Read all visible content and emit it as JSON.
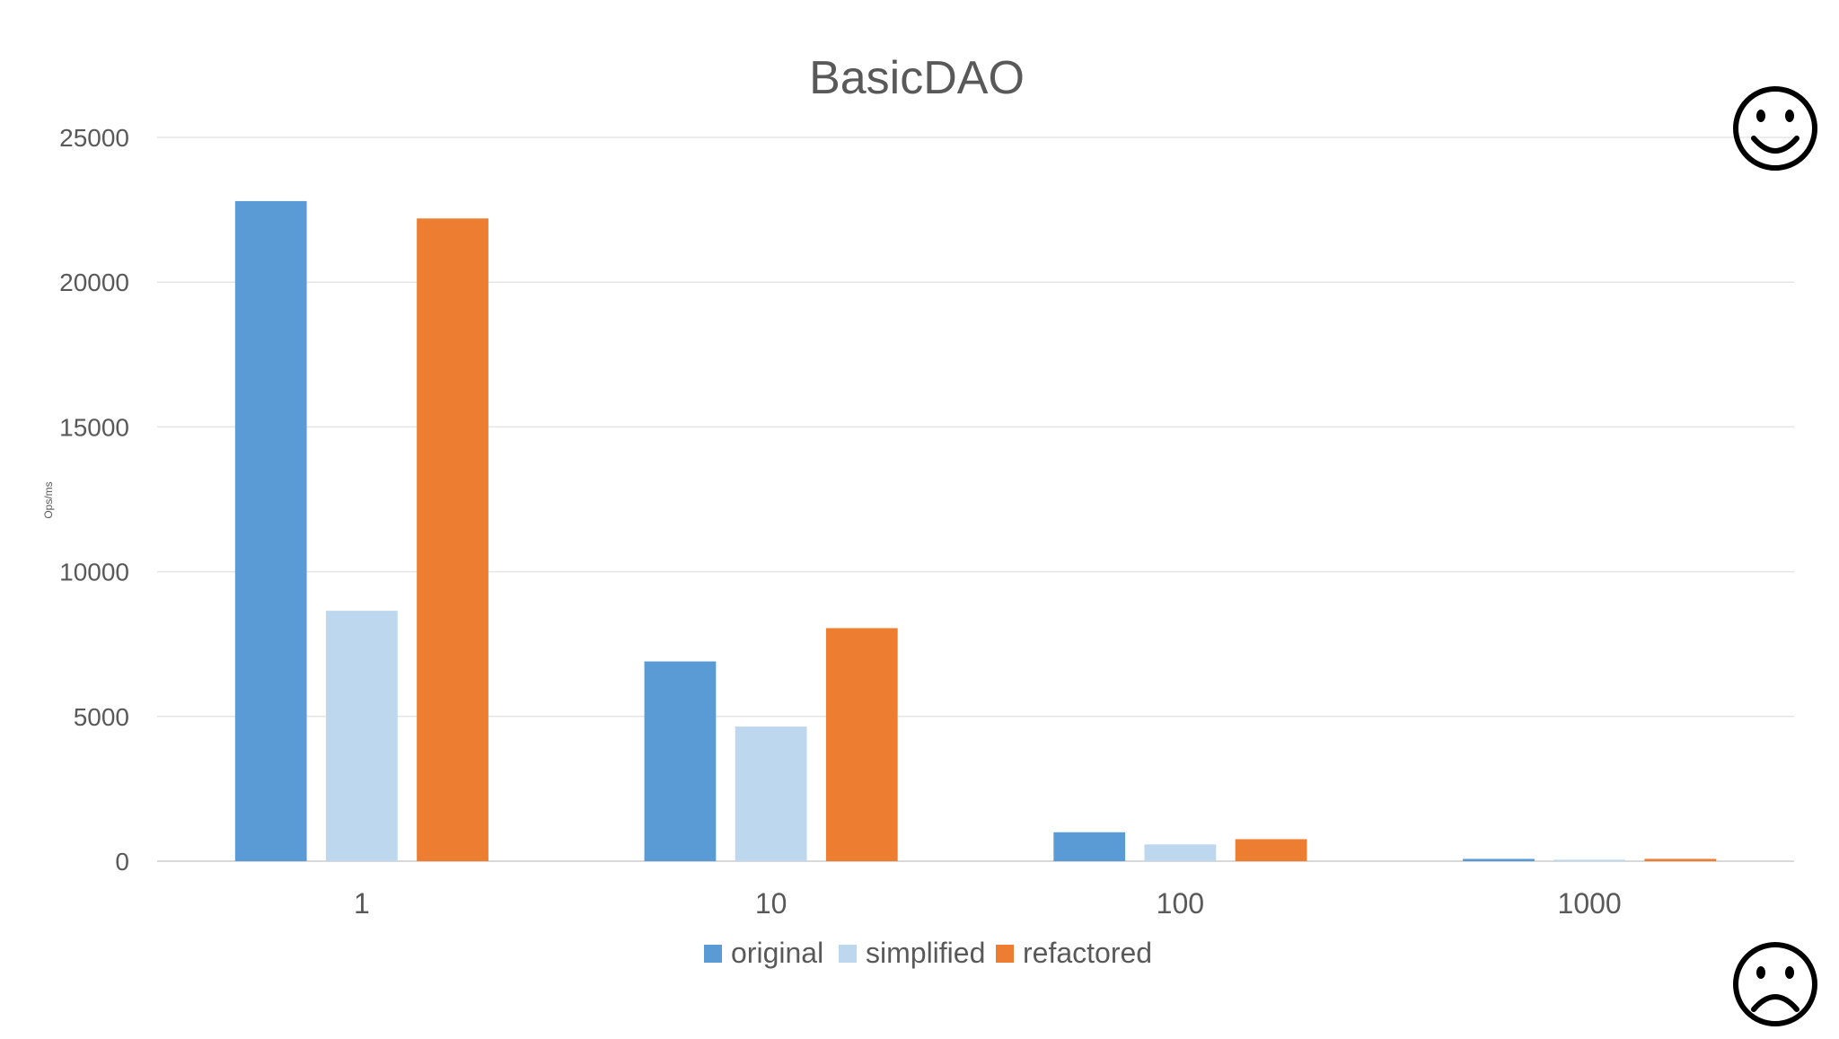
{
  "chart_data": {
    "type": "bar",
    "title": "BasicDAO",
    "xlabel": "",
    "ylabel": "Ops/ms",
    "ylim": [
      0,
      25000
    ],
    "yticks": [
      0,
      5000,
      10000,
      15000,
      20000,
      25000
    ],
    "grid": true,
    "legend_position": "bottom",
    "categories": [
      "1",
      "10",
      "100",
      "1000"
    ],
    "series": [
      {
        "name": "original",
        "color": "#5B9BD5",
        "values": [
          22800,
          6900,
          1000,
          80
        ]
      },
      {
        "name": "simplified",
        "color": "#BDD7EE",
        "values": [
          8650,
          4650,
          580,
          50
        ]
      },
      {
        "name": "refactored",
        "color": "#ED7D31",
        "values": [
          22200,
          8050,
          760,
          80
        ]
      }
    ]
  },
  "decorations": {
    "top_right_icon": "smiley-face-icon",
    "bottom_right_icon": "frowning-face-icon"
  }
}
